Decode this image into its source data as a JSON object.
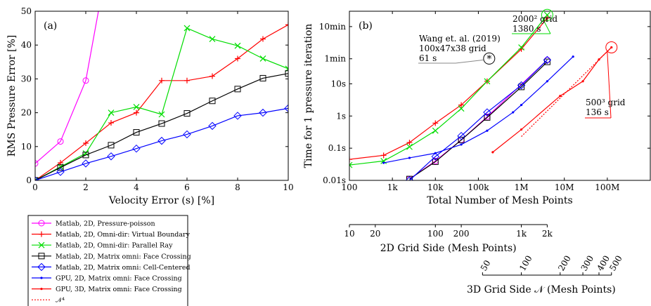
{
  "colors": {
    "magenta": "#ff00ff",
    "red": "#ff0000",
    "green": "#00dd00",
    "black": "#000000",
    "blue": "#0000ff",
    "gray": "#888888"
  },
  "chart_data": [
    {
      "type": "line",
      "panel_label": "(a)",
      "xlabel": "Velocity Error (s) [%]",
      "ylabel": "RMS Pressure Error [%]",
      "xlim": [
        0,
        10
      ],
      "ylim": [
        0,
        50
      ],
      "x_ticks": [
        0,
        2,
        4,
        6,
        8,
        10
      ],
      "y_ticks": [
        0,
        10,
        20,
        30,
        40,
        50
      ],
      "grid": false,
      "series": [
        {
          "name": "Matlab, 2D, Pressure-poisson",
          "color": "magenta",
          "marker": "circle",
          "x": [
            0,
            1,
            2,
            2.5
          ],
          "y": [
            5,
            11.5,
            29.5,
            50
          ]
        },
        {
          "name": "Matlab, 2D, Omni-dir: Virtual Boundary",
          "color": "red",
          "marker": "plus",
          "x": [
            0,
            1,
            2,
            3,
            4,
            5,
            6,
            7,
            8,
            9,
            10
          ],
          "y": [
            0,
            5.2,
            11,
            17,
            20,
            29.5,
            29.5,
            30.8,
            36,
            41.8,
            46
          ]
        },
        {
          "name": "Matlab, 2D, Omni-dir: Parallel Ray",
          "color": "green",
          "marker": "cross",
          "x": [
            0,
            1,
            2,
            3,
            4,
            5,
            6,
            7,
            8,
            9,
            10
          ],
          "y": [
            0,
            4,
            8,
            20,
            21.7,
            19.5,
            45,
            41.8,
            39.8,
            36,
            33
          ]
        },
        {
          "name": "Matlab, 2D, Matrix omni: Face Crossing",
          "color": "black",
          "marker": "square",
          "x": [
            0,
            1,
            2,
            3,
            4,
            5,
            6,
            7,
            8,
            9,
            10
          ],
          "y": [
            0,
            3.8,
            7.5,
            10.4,
            14.2,
            16.8,
            19.8,
            23.5,
            27,
            30.2,
            31.6
          ]
        },
        {
          "name": "Matlab, 2D, Matrix omni: Cell-Centered",
          "color": "blue",
          "marker": "diamond",
          "x": [
            0,
            1,
            2,
            3,
            4,
            5,
            6,
            7,
            8,
            9,
            10
          ],
          "y": [
            0,
            2.5,
            5,
            7.1,
            9.4,
            11.7,
            13.6,
            16.1,
            19.1,
            20,
            21.3
          ]
        }
      ]
    },
    {
      "type": "line",
      "panel_label": "(b)",
      "xlabel": "Total Number of Mesh Points",
      "ylabel": "Time for 1 pressure iteration",
      "x_scale": "log",
      "y_scale": "log",
      "xlim": [
        100,
        1000000000
      ],
      "ylim": [
        0.01,
        1800
      ],
      "x_ticks": [
        100,
        1000,
        10000,
        100000,
        1000000,
        10000000,
        100000000
      ],
      "x_tick_labels": [
        "100",
        "1k",
        "10k",
        "100k",
        "1M",
        "10M",
        "100M"
      ],
      "y_ticks": [
        0.01,
        0.1,
        1,
        10,
        60,
        600
      ],
      "y_tick_labels": [
        "0.01s",
        "0.1s",
        "1s",
        "10s",
        "1min",
        "10min"
      ],
      "grid": false,
      "series": [
        {
          "color": "magenta",
          "marker": "circle",
          "x": [
            2500,
            10000,
            40000,
            160000,
            4000000
          ],
          "y": [
            0.011,
            0.04,
            0.18,
            0.95,
            55
          ]
        },
        {
          "color": "red",
          "marker": "plus",
          "x": [
            100,
            625,
            2500,
            10000,
            40000,
            160000,
            1000000,
            4000000
          ],
          "y": [
            0.045,
            0.06,
            0.15,
            0.6,
            2.2,
            12,
            120,
            1100
          ]
        },
        {
          "color": "green",
          "marker": "cross",
          "x": [
            100,
            625,
            2500,
            10000,
            40000,
            160000,
            1000000,
            4000000
          ],
          "y": [
            0.03,
            0.04,
            0.11,
            0.35,
            1.7,
            12,
            135,
            1380
          ]
        },
        {
          "color": "black",
          "marker": "square",
          "x": [
            2500,
            10000,
            40000,
            160000,
            1000000,
            4000000
          ],
          "y": [
            0.011,
            0.038,
            0.18,
            0.9,
            8,
            48
          ]
        },
        {
          "color": "blue",
          "marker": "diamond",
          "x": [
            2500,
            10000,
            40000,
            160000,
            1000000,
            4000000
          ],
          "y": [
            0.01,
            0.055,
            0.24,
            1.3,
            9,
            55
          ]
        },
        {
          "color": "blue",
          "marker": "dot",
          "x": [
            625,
            2500,
            10000,
            40000,
            160000,
            640000,
            1000000,
            4000000,
            16000000
          ],
          "y": [
            0.035,
            0.05,
            0.07,
            0.13,
            0.35,
            1.3,
            2.2,
            12,
            70
          ]
        },
        {
          "color": "red",
          "marker": "dot",
          "x": [
            216000,
            1000000,
            8000000,
            27000000,
            64000000,
            125000000
          ],
          "y": [
            0.075,
            0.38,
            4.2,
            12,
            57,
            136
          ]
        },
        {
          "color": "red",
          "marker": "none",
          "dashed": true,
          "x": [
            1000000,
            125000000
          ],
          "y": [
            0.23,
            136
          ]
        }
      ],
      "annotations": [
        {
          "lines": [
            "Wang et. al. (2019)",
            "100x47x38 grid",
            "61 s"
          ],
          "color": "gray",
          "point": [
            178600,
            61
          ]
        },
        {
          "lines": [
            "2000² grid",
            "1380 s"
          ],
          "color": "green",
          "point": [
            4000000,
            1380
          ]
        },
        {
          "lines": [
            "500³ grid",
            "136 s"
          ],
          "color": "red",
          "point": [
            125000000,
            136
          ]
        }
      ],
      "secondary_axes": [
        {
          "label": "2D Grid Side (Mesh Points)",
          "ticks": [
            10,
            20,
            100,
            200,
            1000,
            2000
          ],
          "tick_labels": [
            "10",
            "20",
            "100",
            "200",
            "1k",
            "2k"
          ]
        },
        {
          "label": "3D Grid Side 𝒩 (Mesh Points)",
          "ticks": [
            50,
            100,
            200,
            300,
            400,
            500
          ],
          "tick_labels": [
            "50",
            "100",
            "200",
            "300",
            "400",
            "500"
          ]
        }
      ]
    }
  ],
  "legend": {
    "entries": [
      {
        "label": "Matlab, 2D, Pressure-poisson",
        "color": "magenta",
        "marker": "circle"
      },
      {
        "label": "Matlab, 2D, Omni-dir: Virtual Boundary",
        "color": "red",
        "marker": "plus"
      },
      {
        "label": "Matlab, 2D, Omni-dir: Parallel Ray",
        "color": "green",
        "marker": "cross"
      },
      {
        "label": "Matlab, 2D, Matrix omni: Face Crossing",
        "color": "black",
        "marker": "square"
      },
      {
        "label": "Matlab, 2D, Matrix omni: Cell-Centered",
        "color": "blue",
        "marker": "diamond"
      },
      {
        "label": "GPU, 2D, Matrix omni: Face Crossing",
        "color": "blue",
        "marker": "dot"
      },
      {
        "label": "GPU, 3D, Matrix omni: Face Crossing",
        "color": "red",
        "marker": "dot"
      },
      {
        "label": "𝒩⁴",
        "color": "red",
        "marker": "none",
        "dashed": true
      }
    ]
  }
}
